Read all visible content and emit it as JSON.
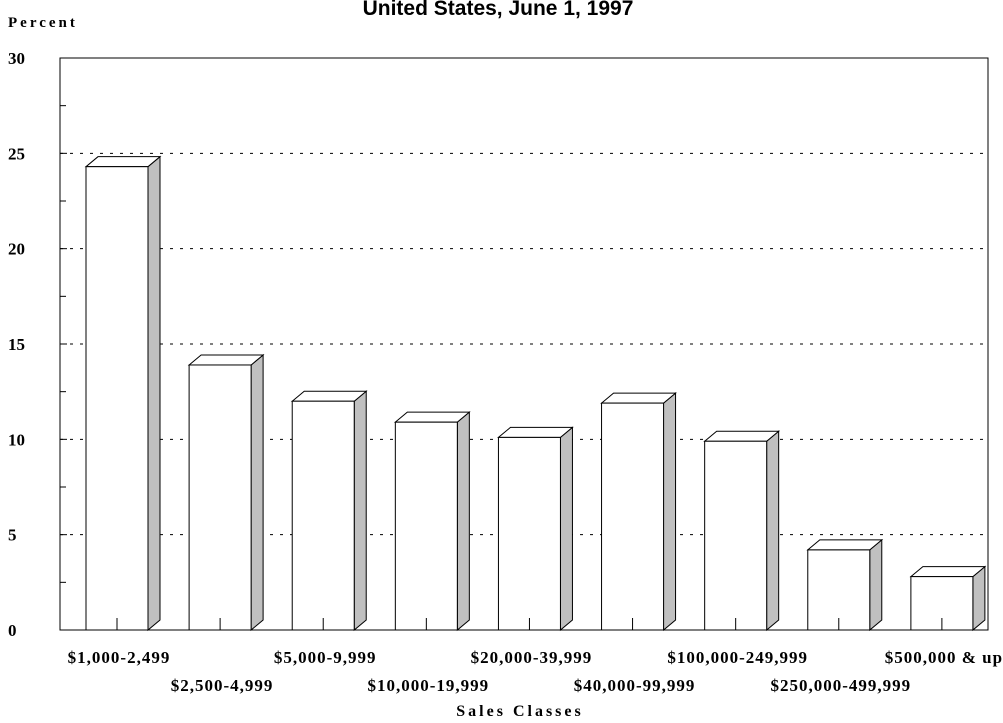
{
  "chart_data": {
    "type": "bar",
    "title": "United States, June 1, 1997",
    "ylabel": "Percent",
    "xlabel": "Sales Classes",
    "categories": [
      "$1,000-2,499",
      "$2,500-4,999",
      "$5,000-9,999",
      "$10,000-19,999",
      "$20,000-39,999",
      "$40,000-99,999",
      "$100,000-249,999",
      "$250,000-499,999",
      "$500,000 & up"
    ],
    "values": [
      24.3,
      13.9,
      12.0,
      10.9,
      10.1,
      11.9,
      9.9,
      4.2,
      2.8
    ],
    "ylim": [
      0,
      30
    ],
    "yticks": [
      0,
      5,
      10,
      15,
      20,
      25,
      30
    ],
    "grid": true,
    "bar_style": "3d",
    "colors": {
      "bar_face": "#ffffff",
      "bar_side": "#c0c0c0",
      "stroke": "#000000"
    }
  }
}
